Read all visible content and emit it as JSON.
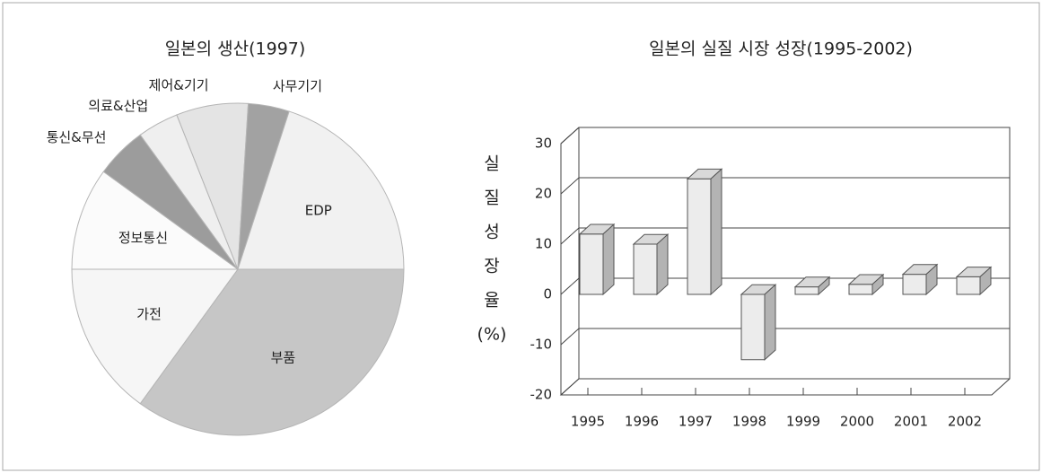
{
  "chart_data": [
    {
      "type": "pie",
      "title": "일본의 생산(1997)",
      "categories": [
        "부품",
        "가전",
        "정보통신",
        "통신&무선",
        "의료&산업",
        "제어&기기",
        "사무기기",
        "EDP"
      ],
      "values": [
        35,
        15,
        10,
        5,
        4,
        7,
        4,
        20
      ],
      "colors": [
        "#c6c6c6",
        "#f6f6f6",
        "#fbfbfb",
        "#9c9c9c",
        "#efefef",
        "#e4e4e4",
        "#a2a2a2",
        "#f1f1f1"
      ]
    },
    {
      "type": "bar3d",
      "title": "일본의 실질 시장 성장(1995-2002)",
      "ylabel_lines": [
        "실",
        "질",
        "성",
        "장",
        "율",
        "(%)"
      ],
      "categories": [
        "1995",
        "1996",
        "1997",
        "1998",
        "1999",
        "2000",
        "2001",
        "2002"
      ],
      "values": [
        12,
        10,
        23,
        -13,
        1.5,
        2,
        4,
        3.5
      ],
      "color": "#ececec",
      "ylim": [
        -20,
        30
      ],
      "yticks": [
        -20,
        -10,
        0,
        10,
        20,
        30
      ],
      "grid": true
    }
  ]
}
